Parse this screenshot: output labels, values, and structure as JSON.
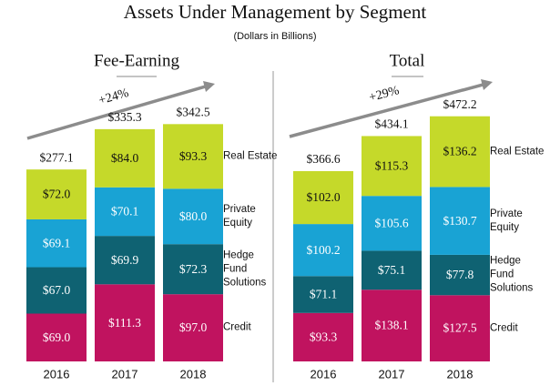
{
  "title": "Assets Under Management by Segment",
  "subtitle": "(Dollars in Billions)",
  "chart_data": [
    {
      "type": "stacked_bar",
      "title": "Fee-Earning",
      "annotation": "+24%",
      "categories": [
        "2016",
        "2017",
        "2018"
      ],
      "ylim": [
        0,
        368
      ],
      "series": [
        {
          "name": "Credit",
          "color": "#c0135f",
          "values": [
            69.0,
            111.3,
            97.0
          ],
          "value_labels": [
            "$69.0",
            "$111.3",
            "$97.0"
          ]
        },
        {
          "name": "Hedge Fund Solutions",
          "color": "#0f6272",
          "values": [
            67.0,
            69.9,
            72.3
          ],
          "value_labels": [
            "$67.0",
            "$69.9",
            "$72.3"
          ]
        },
        {
          "name": "Private Equity",
          "color": "#19a3d4",
          "values": [
            69.1,
            70.1,
            80.0
          ],
          "value_labels": [
            "$69.1",
            "$70.1",
            "$80.0"
          ]
        },
        {
          "name": "Real Estate",
          "color": "#c5d92a",
          "values": [
            72.0,
            84.0,
            93.3
          ],
          "value_labels": [
            "$72.0",
            "$84.0",
            "$93.3"
          ]
        }
      ],
      "totals": [
        277.1,
        335.3,
        342.5
      ],
      "total_labels": [
        "$277.1",
        "$335.3",
        "$342.5"
      ]
    },
    {
      "type": "stacked_bar",
      "title": "Total",
      "annotation": "+29%",
      "categories": [
        "2016",
        "2017",
        "2018"
      ],
      "ylim": [
        0,
        491
      ],
      "series": [
        {
          "name": "Credit",
          "color": "#c0135f",
          "values": [
            93.3,
            138.1,
            127.5
          ],
          "value_labels": [
            "$93.3",
            "$138.1",
            "$127.5"
          ]
        },
        {
          "name": "Hedge Fund Solutions",
          "color": "#0f6272",
          "values": [
            71.1,
            75.1,
            77.8
          ],
          "value_labels": [
            "$71.1",
            "$75.1",
            "$77.8"
          ]
        },
        {
          "name": "Private Equity",
          "color": "#19a3d4",
          "values": [
            100.2,
            105.6,
            130.7
          ],
          "value_labels": [
            "$100.2",
            "$105.6",
            "$130.7"
          ]
        },
        {
          "name": "Real Estate",
          "color": "#c5d92a",
          "values": [
            102.0,
            115.3,
            136.2
          ],
          "value_labels": [
            "$102.0",
            "$115.3",
            "$136.2"
          ]
        }
      ],
      "totals": [
        366.6,
        434.1,
        472.2
      ],
      "total_labels": [
        "$366.6",
        "$434.1",
        "$472.2"
      ]
    }
  ]
}
